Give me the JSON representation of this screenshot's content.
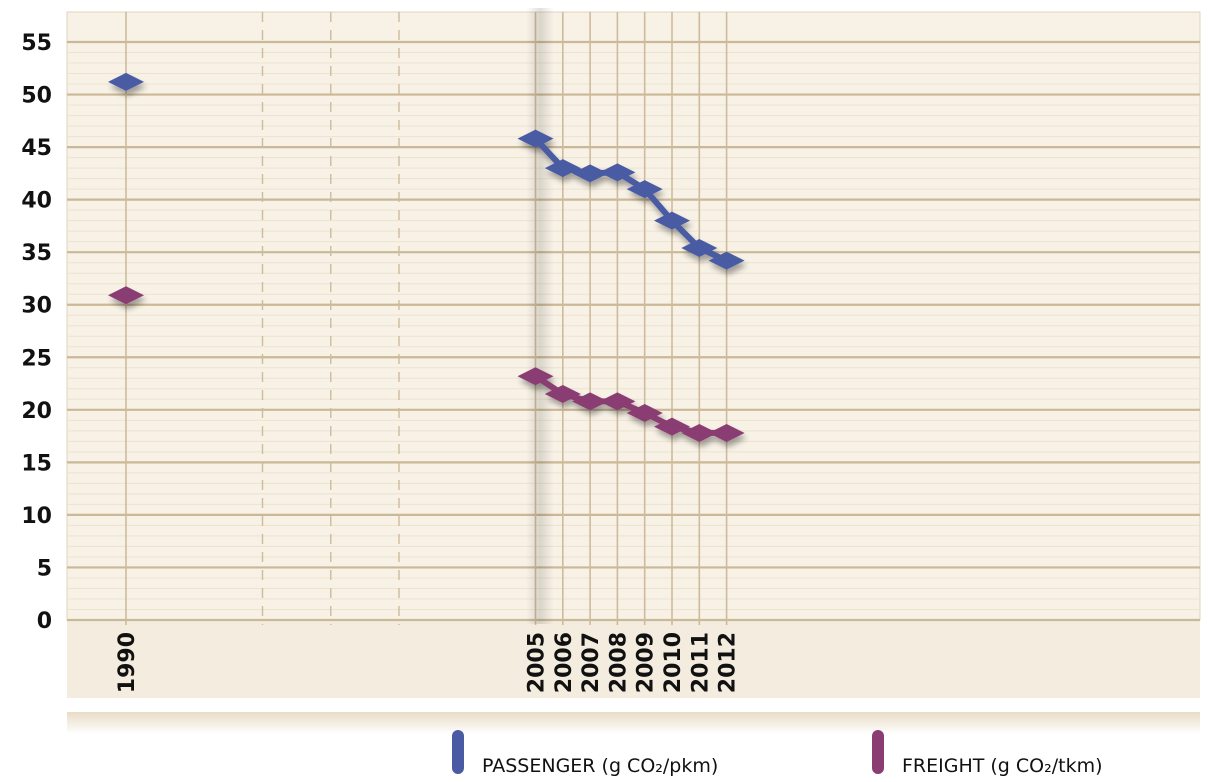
{
  "chart_data": {
    "type": "line",
    "title": "",
    "xlabel": "",
    "ylabel": "",
    "categories": [
      "1990",
      "2005",
      "2006",
      "2007",
      "2008",
      "2009",
      "2010",
      "2011",
      "2012"
    ],
    "x_minor_gridlines": [
      "1995",
      "2000"
    ],
    "ylim": [
      0,
      55
    ],
    "yticks": [
      "0",
      "5",
      "10",
      "15",
      "20",
      "25",
      "30",
      "35",
      "40",
      "45",
      "50",
      "55"
    ],
    "grid": true,
    "legend_placement": "bottom-right",
    "series": [
      {
        "name": "PASSENGER (g CO₂/pkm)",
        "color": "#4a5ba3",
        "values": [
          51.2,
          45.8,
          43.0,
          42.5,
          42.6,
          41.0,
          38.0,
          35.4,
          34.2
        ]
      },
      {
        "name": "FREIGHT (g CO₂/tkm)",
        "color": "#8a3d72",
        "values": [
          30.9,
          23.2,
          21.5,
          20.8,
          20.8,
          19.7,
          18.4,
          17.8,
          17.8
        ]
      }
    ]
  }
}
